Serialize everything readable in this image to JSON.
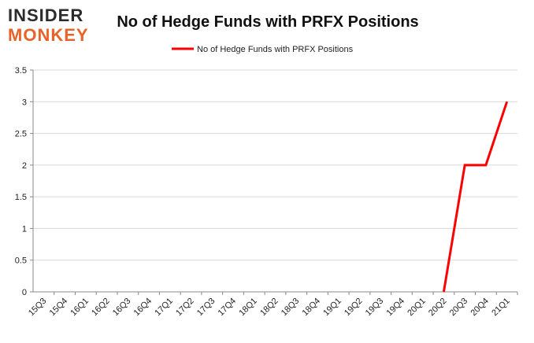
{
  "logo": {
    "line1": "INSIDER",
    "line2": "MONKEY"
  },
  "chart_data": {
    "type": "line",
    "title": "No of Hedge Funds with PRFX Positions",
    "categories": [
      "15Q3",
      "15Q4",
      "16Q1",
      "16Q2",
      "16Q3",
      "16Q4",
      "17Q1",
      "17Q2",
      "17Q3",
      "17Q4",
      "18Q1",
      "18Q2",
      "18Q3",
      "18Q4",
      "19Q1",
      "19Q2",
      "19Q3",
      "19Q4",
      "20Q1",
      "20Q2",
      "20Q3",
      "20Q4",
      "21Q1"
    ],
    "series": [
      {
        "name": "No of Hedge Funds with PRFX Positions",
        "color": "#ff0000",
        "values": [
          null,
          null,
          null,
          null,
          null,
          null,
          null,
          null,
          null,
          null,
          null,
          null,
          null,
          null,
          null,
          null,
          null,
          null,
          null,
          0,
          2,
          2,
          3
        ]
      }
    ],
    "ylim": [
      0,
      3.5
    ],
    "yticks": [
      0,
      0.5,
      1,
      1.5,
      2,
      2.5,
      3,
      3.5
    ],
    "grid": true,
    "legend": "top"
  }
}
